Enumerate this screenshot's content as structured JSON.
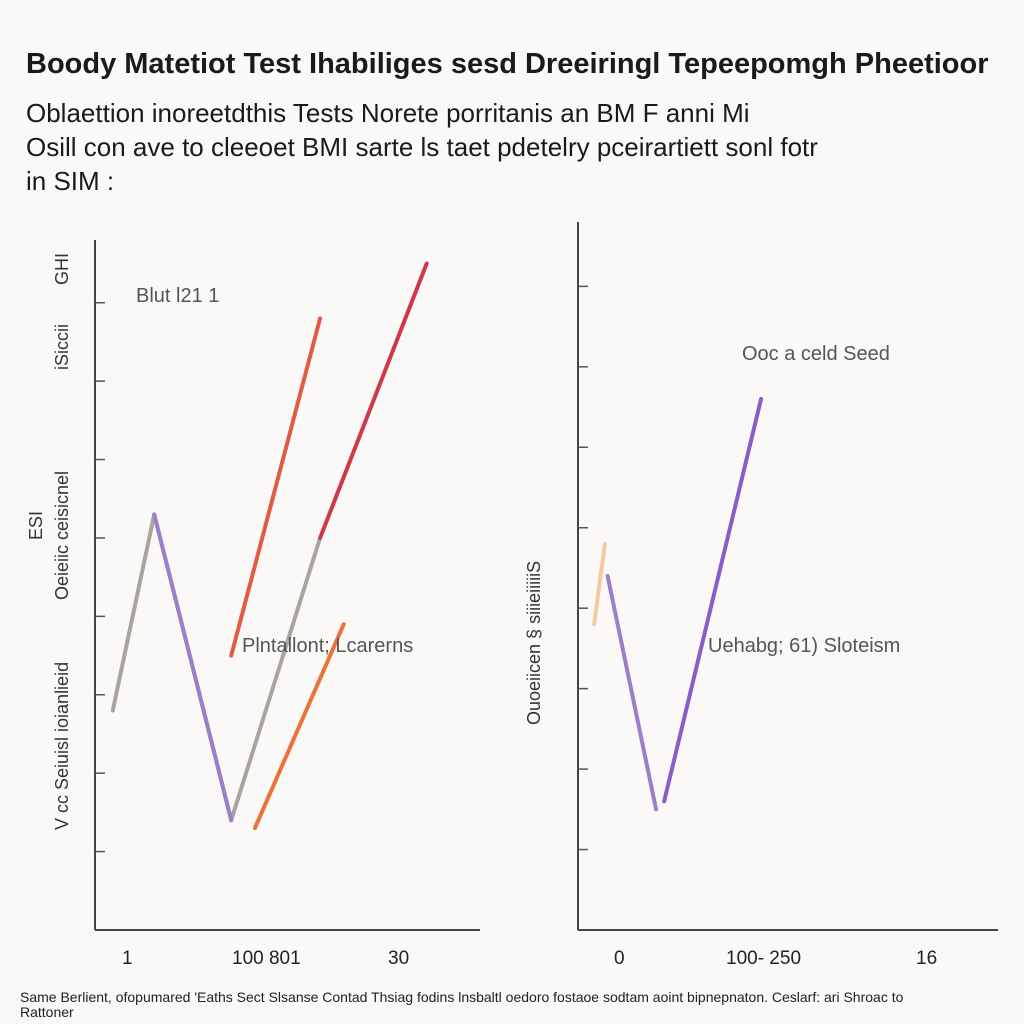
{
  "header": {
    "title": "Boody Matetiot Test  Ihabiliges sesd Dreeiringl Tepeepomgh Pheetioor",
    "subtitle_lines": [
      "Oblaettion inoreetdthis Tests    Norete porritanis an BM F anni Mi",
      "Osill con ave to cleeoet BMI sarte ls taet pdetelry pceirartiett sonl fotr",
      "in SIM :"
    ]
  },
  "chart_data": [
    {
      "type": "line",
      "ylabel_lines": [
        "V cc Seiuisl ioianlieid",
        "Oeieiic ceisicnel",
        "ESI",
        "iSiccii",
        "GHI"
      ],
      "x_tick_labels": [
        "1",
        "100 801",
        "30"
      ],
      "annotations": [
        "Blut l21 1",
        "Plntallont; Lcarerns"
      ],
      "series": [
        {
          "name": "",
          "color": "#a8a4a0",
          "x": [
            0.3,
            1.0,
            2.3,
            3.8
          ],
          "y": [
            2.8,
            5.3,
            1.4,
            5.0
          ]
        },
        {
          "name": "",
          "color": "#9a80c8",
          "x": [
            1.0,
            2.3
          ],
          "y": [
            5.3,
            1.4
          ]
        },
        {
          "name": "",
          "color": "#e05b44",
          "x": [
            2.3,
            3.8
          ],
          "y": [
            3.5,
            7.8
          ]
        },
        {
          "name": "",
          "color": "#d0384a",
          "x": [
            3.8,
            5.6
          ],
          "y": [
            5.0,
            8.5
          ]
        },
        {
          "name": "",
          "color": "#e8743c",
          "x": [
            2.7,
            4.2
          ],
          "y": [
            1.3,
            3.9
          ]
        }
      ],
      "xlim": [
        0,
        6.5
      ],
      "ylim": [
        0,
        8.8
      ],
      "grid": false
    },
    {
      "type": "line",
      "ylabel_lines": [
        "Ouoeiicen § siiieiiiiiS"
      ],
      "x_tick_labels": [
        "0",
        "100- 250",
        "16"
      ],
      "annotations": [
        "Ooc a celd Seed",
        "Uehabg; 61) Sloteism"
      ],
      "series": [
        {
          "name": "",
          "color": "#f3caa0",
          "x": [
            0.3,
            0.5
          ],
          "y": [
            3.8,
            4.8
          ]
        },
        {
          "name": "",
          "color": "#9a80c8",
          "x": [
            0.55,
            1.45
          ],
          "y": [
            4.4,
            1.5
          ]
        },
        {
          "name": "",
          "color": "#8a5cc8",
          "x": [
            1.6,
            3.4
          ],
          "y": [
            1.6,
            6.6
          ]
        }
      ],
      "xlim": [
        0,
        7.8
      ],
      "ylim": [
        0,
        8.8
      ],
      "grid": false
    }
  ],
  "footnote_lines": [
    "Same Berlient, ofopumared 'Eaths Sect Slsanse Contad Thsiag fodins lnsbaltl oedoro fostaoe sodtam aoint bipnepnaton. Ceslarf: ari Shroac to",
    "Rattoner"
  ]
}
